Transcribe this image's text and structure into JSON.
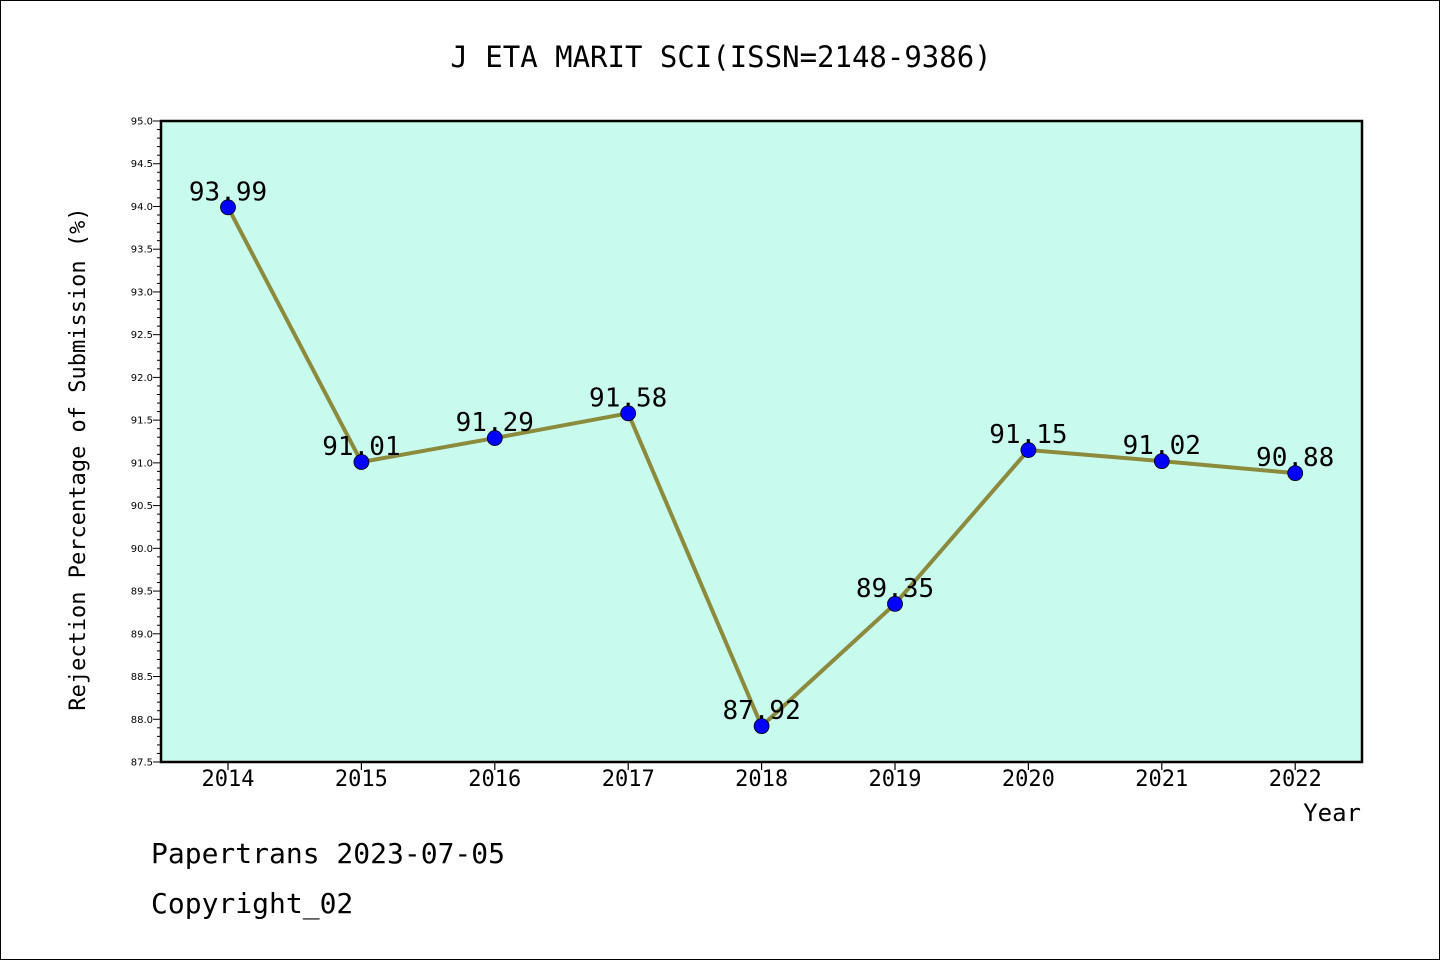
{
  "chart_data": {
    "type": "line",
    "title": "J ETA MARIT SCI(ISSN=2148-9386)",
    "xlabel": "Year",
    "ylabel": "Rejection Percentage of Submission (%)",
    "x": [
      "2014",
      "2015",
      "2016",
      "2017",
      "2018",
      "2019",
      "2020",
      "2021",
      "2022"
    ],
    "series": [
      {
        "values": [
          93.99,
          91.01,
          91.29,
          91.58,
          87.92,
          89.35,
          91.15,
          91.02,
          90.88
        ]
      }
    ],
    "data_labels": [
      "93.99",
      "91.01",
      "91.29",
      "91.58",
      "87.92",
      "89.35",
      "91.15",
      "91.02",
      "90.88"
    ],
    "yticks": [
      "87.5",
      "88.0",
      "88.5",
      "89.0",
      "89.5",
      "90.0",
      "90.5",
      "91.0",
      "91.5",
      "92.0",
      "92.5",
      "93.0",
      "93.5",
      "94.0",
      "94.5",
      "95.0"
    ],
    "ylim": [
      87.5,
      95.0
    ],
    "grid": false,
    "colors": {
      "plot_background": "#c8fbee",
      "line": "#8c8a3c",
      "marker": "#0000ff"
    }
  },
  "footer": {
    "line1": "Papertrans 2023-07-05",
    "line2": "Copyright_02"
  }
}
